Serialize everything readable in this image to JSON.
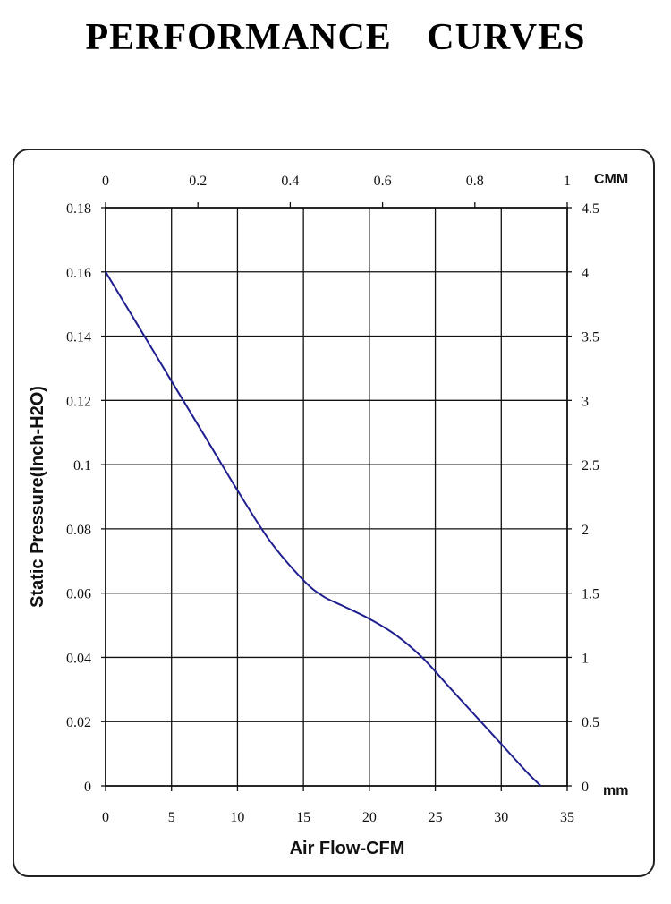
{
  "title": "PERFORMANCE    CURVES",
  "chart_data": {
    "type": "line",
    "xlabel": "Air Flow-CFM",
    "ylabel": "Static Pressure(Inch-H2O)",
    "xlim": [
      0,
      35
    ],
    "ylim": [
      0,
      0.18
    ],
    "x_ticks": [
      "0",
      "5",
      "10",
      "15",
      "20",
      "25",
      "30",
      "35"
    ],
    "y_ticks": [
      "0",
      "0.02",
      "0.04",
      "0.06",
      "0.08",
      "0.1",
      "0.12",
      "0.14",
      "0.16",
      "0.18"
    ],
    "x2_unit": "CMM",
    "x2_ticks": [
      "0",
      "0.2",
      "0.4",
      "0.6",
      "0.8",
      "1"
    ],
    "y2_unit": "mm",
    "y2_ticks": [
      "0",
      "0.5",
      "1",
      "1.5",
      "2",
      "2.5",
      "3",
      "3.5",
      "4",
      "4.5"
    ],
    "grid": true,
    "series": [
      {
        "color": "#1f1f8f",
        "x": [
          0,
          2.5,
          5,
          7.5,
          10,
          12.5,
          15,
          16.5,
          18,
          20,
          22,
          24,
          26,
          28,
          30,
          32,
          33
        ],
        "y": [
          0.16,
          0.143,
          0.126,
          0.109,
          0.092,
          0.076,
          0.064,
          0.059,
          0.056,
          0.052,
          0.047,
          0.04,
          0.031,
          0.022,
          0.013,
          0.004,
          0
        ]
      }
    ]
  }
}
